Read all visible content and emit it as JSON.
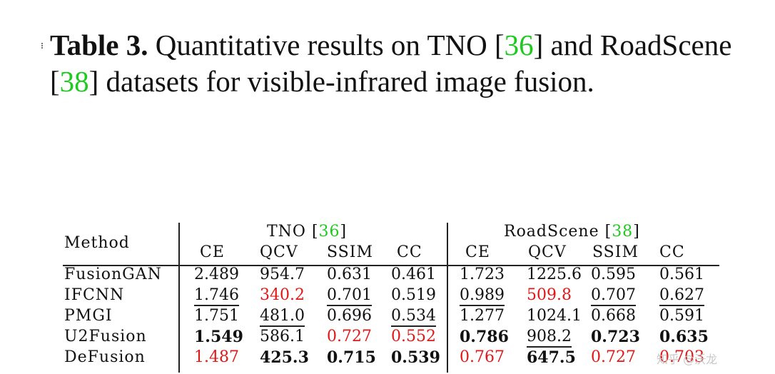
{
  "caption": {
    "label": "Table 3.",
    "text_before_cite1": " Quantitative results on TNO [",
    "cite1": "36",
    "text_mid": "] and RoadScene [",
    "cite2": "38",
    "text_after": "] datasets for visible-infrared image fusion."
  },
  "table": {
    "method_header": "Method",
    "group1": {
      "name": "TNO [",
      "cite": "36",
      "close": "]"
    },
    "group2": {
      "name": "RoadScene [",
      "cite": "38",
      "close": "]"
    },
    "metrics": [
      "CE",
      "QCV",
      "SSIM",
      "CC",
      "CE",
      "QCV",
      "SSIM",
      "CC"
    ],
    "rows": [
      {
        "method": "FusionGAN",
        "values": [
          "2.489",
          "954.7",
          "0.631",
          "0.461",
          "1.723",
          "1225.6",
          "0.595",
          "0.561"
        ]
      },
      {
        "method": "IFCNN",
        "values": [
          "1.746",
          "340.2",
          "0.701",
          "0.519",
          "0.989",
          "509.8",
          "0.707",
          "0.627"
        ]
      },
      {
        "method": "PMGI",
        "values": [
          "1.751",
          "481.0",
          "0.696",
          "0.534",
          "1.277",
          "1024.1",
          "0.668",
          "0.591"
        ]
      },
      {
        "method": "U2Fusion",
        "values": [
          "1.549",
          "586.1",
          "0.727",
          "0.552",
          "0.786",
          "908.2",
          "0.723",
          "0.635"
        ]
      },
      {
        "method": "DeFusion",
        "values": [
          "1.487",
          "425.3",
          "0.715",
          "0.539",
          "0.767",
          "647.5",
          "0.727",
          "0.703"
        ]
      }
    ]
  },
  "watermark": "知乎 @沃龙"
}
